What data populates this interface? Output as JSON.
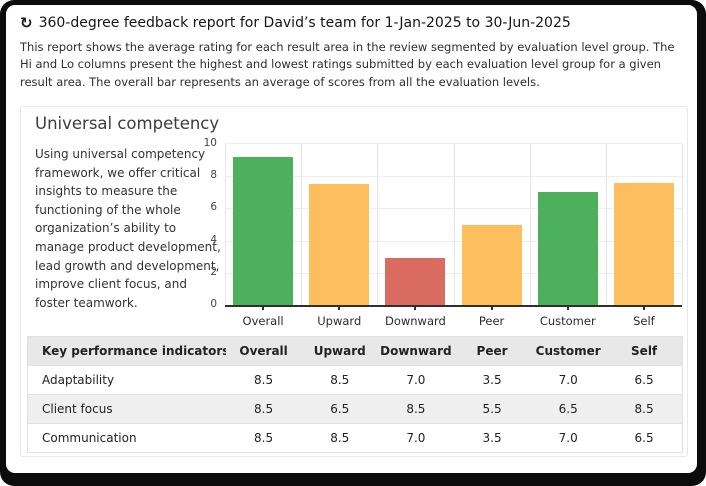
{
  "header": {
    "icon": "refresh-icon",
    "refresh_glyph": "↻",
    "title": "360-degree feedback report for David’s team for 1-Jan-2025 to 30-Jun-2025",
    "description": "This report shows the average rating for each result area in the review segmented by evaluation level group. The Hi and Lo columns present the highest and lowest ratings submitted by each evaluation level group for a given result area. The overall bar represents an average of scores from all the evaluation levels."
  },
  "card": {
    "title": "Universal competency",
    "description": "Using universal competency framework, we offer critical insights to measure the functioning of the whole organization’s ability to manage product development, lead growth and development, improve client focus, and foster teamwork."
  },
  "chart_data": {
    "type": "bar",
    "title": "",
    "xlabel": "",
    "ylabel": "",
    "categories": [
      "Overall",
      "Upward",
      "Downward",
      "Peer",
      "Customer",
      "Self"
    ],
    "values": [
      9.2,
      7.5,
      2.9,
      5.0,
      7.0,
      7.6
    ],
    "bar_colors": [
      "#4cb05c",
      "#fdbf5d",
      "#d96b60",
      "#fdbf5d",
      "#4cb05c",
      "#fdbf5d"
    ],
    "ylim": [
      0,
      10
    ],
    "yticks": [
      0,
      2,
      4,
      6,
      8,
      10
    ],
    "grid": true,
    "legend": "none"
  },
  "table": {
    "header": [
      "Key performance indicators",
      "Overall",
      "Upward",
      "Downward",
      "Peer",
      "Customer",
      "Self"
    ],
    "rows": [
      {
        "label": "Adaptability",
        "values": [
          "8.5",
          "8.5",
          "7.0",
          "3.5",
          "7.0",
          "6.5"
        ]
      },
      {
        "label": "Client focus",
        "values": [
          "8.5",
          "6.5",
          "8.5",
          "5.5",
          "6.5",
          "8.5"
        ]
      },
      {
        "label": "Communication",
        "values": [
          "8.5",
          "8.5",
          "7.0",
          "3.5",
          "7.0",
          "6.5"
        ]
      }
    ]
  },
  "colors": {
    "bar_green": "#4cb05c",
    "bar_orange": "#fdbf5d",
    "bar_red": "#d96b60",
    "table_header_bg": "#e8e8e8",
    "table_alt_row_bg": "#efefef",
    "frame": "#0c0c0c"
  }
}
